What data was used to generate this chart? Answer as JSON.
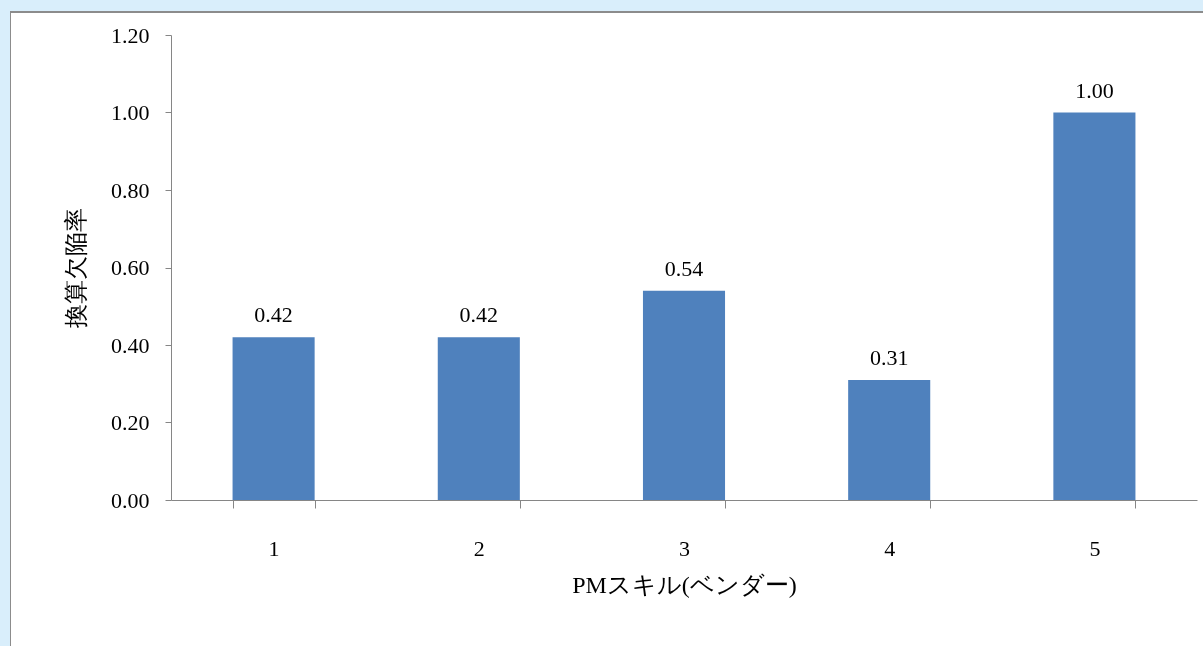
{
  "chart_data": {
    "type": "bar",
    "xlabel": "PMスキル(ベンダー)",
    "ylabel": "換算欠陥率",
    "categories": [
      "1",
      "2",
      "3",
      "4",
      "5"
    ],
    "values": [
      0.42,
      0.42,
      0.54,
      0.31,
      1.0
    ],
    "color": "#4f81bd",
    "value_labels": [
      "0.42",
      "0.42",
      "0.54",
      "0.31",
      "1.00"
    ],
    "ylim": [
      0,
      1.2
    ],
    "yticks": [
      {
        "value": 0,
        "label": "0.00"
      },
      {
        "value": 0.2,
        "label": "0.20"
      },
      {
        "value": 0.4,
        "label": "0.40"
      },
      {
        "value": 0.6,
        "label": "0.60"
      },
      {
        "value": 0.8,
        "label": "0.80"
      },
      {
        "value": 1.0,
        "label": "1.00"
      },
      {
        "value": 1.2,
        "label": "1.20"
      }
    ]
  }
}
